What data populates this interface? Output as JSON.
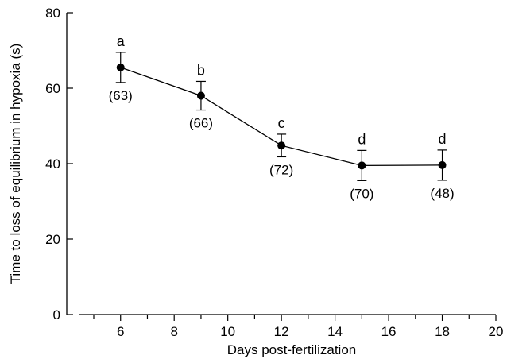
{
  "chart_data": {
    "type": "line",
    "title": "",
    "xlabel": "Days post-fertilization",
    "ylabel": "Time to loss of equilibrium in hypoxia (s)",
    "xlim": [
      4,
      20
    ],
    "ylim": [
      0,
      80
    ],
    "x_ticks": [
      6,
      8,
      10,
      12,
      14,
      16,
      18,
      20
    ],
    "x_minor_ticks": [
      5,
      7,
      9,
      11,
      13,
      15,
      17,
      19
    ],
    "y_ticks": [
      0,
      20,
      40,
      60,
      80
    ],
    "grid": false,
    "legend": "none",
    "series": [
      {
        "x": [
          6,
          9,
          12,
          15,
          18
        ],
        "y": [
          65.5,
          58,
          44.8,
          39.5,
          39.6
        ],
        "error": [
          4,
          3.8,
          3,
          4,
          4
        ],
        "significance_labels": [
          "a",
          "b",
          "c",
          "d",
          "d"
        ],
        "sample_sizes": [
          "(63)",
          "(66)",
          "(72)",
          "(70)",
          "(48)"
        ]
      }
    ]
  }
}
